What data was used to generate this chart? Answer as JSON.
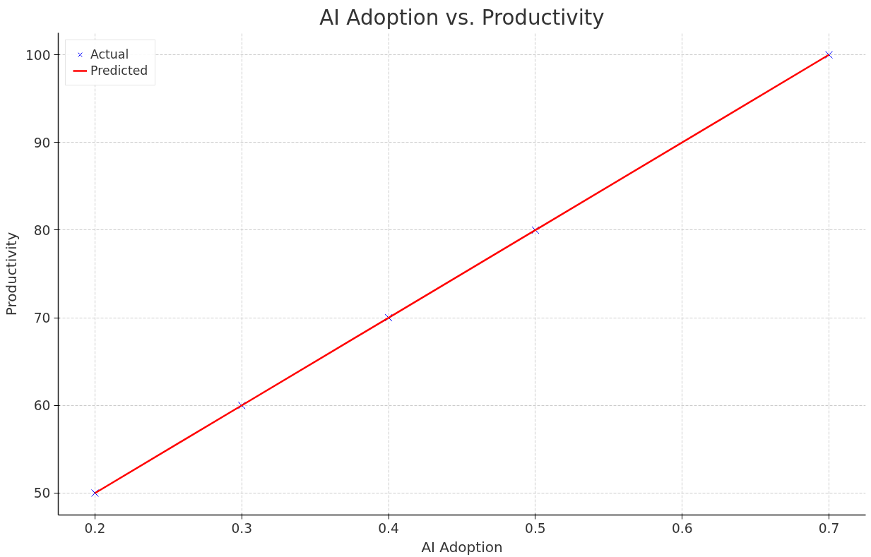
{
  "chart_data": {
    "type": "scatter",
    "title": "AI Adoption vs. Productivity",
    "xlabel": "AI Adoption",
    "ylabel": "Productivity",
    "x": [
      0.2,
      0.3,
      0.4,
      0.5,
      0.7
    ],
    "series": [
      {
        "name": "Actual",
        "marker": "cross",
        "color": "#0000ff",
        "values": [
          50,
          60,
          70,
          80,
          100
        ]
      },
      {
        "name": "Predicted",
        "type": "line",
        "color": "#ff0000",
        "values": [
          50,
          60,
          70,
          80,
          100
        ]
      }
    ],
    "xlim": [
      0.175,
      0.725
    ],
    "xticks": [
      0.2,
      0.3,
      0.4,
      0.5,
      0.6,
      0.7
    ],
    "ylim": [
      47.5,
      102.5
    ],
    "yticks": [
      50,
      60,
      70,
      80,
      90,
      100
    ],
    "grid": true,
    "legend": "top left"
  }
}
